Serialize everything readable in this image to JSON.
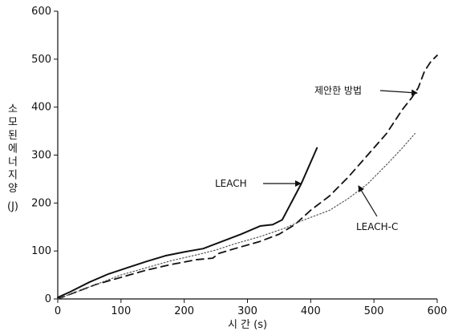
{
  "chart_data": {
    "type": "line",
    "title": "",
    "xlabel": "시 간 (s)",
    "ylabel_lines": [
      "소",
      "모",
      "된",
      "에",
      "너",
      "지",
      "양",
      "(J)"
    ],
    "xlim": [
      0,
      600
    ],
    "ylim": [
      0,
      600
    ],
    "x_ticks": [
      0,
      100,
      200,
      300,
      400,
      500,
      600
    ],
    "y_ticks": [
      0,
      100,
      200,
      300,
      400,
      500,
      600
    ],
    "x_tick_labels": [
      "0",
      "100",
      "200",
      "300",
      "400",
      "500",
      "600"
    ],
    "y_tick_labels": [
      "0",
      "100",
      "200",
      "300",
      "400",
      "500",
      "600"
    ],
    "grid": false,
    "series": [
      {
        "name": "LEACH",
        "style": "solid",
        "color": "#111111",
        "x": [
          0,
          20,
          50,
          80,
          110,
          140,
          170,
          200,
          230,
          260,
          290,
          320,
          340,
          355,
          365,
          375,
          385,
          395,
          405,
          410
        ],
        "y": [
          3,
          15,
          35,
          52,
          65,
          78,
          90,
          98,
          105,
          120,
          135,
          152,
          155,
          165,
          190,
          215,
          240,
          270,
          300,
          315
        ]
      },
      {
        "name": "제안한 방법",
        "style": "dashed",
        "color": "#111111",
        "x": [
          0,
          30,
          60,
          100,
          140,
          180,
          220,
          245,
          255,
          280,
          320,
          350,
          375,
          400,
          430,
          460,
          490,
          520,
          545,
          560,
          570,
          580,
          590,
          600
        ],
        "y": [
          0,
          15,
          30,
          45,
          60,
          72,
          82,
          85,
          95,
          105,
          120,
          135,
          155,
          185,
          215,
          255,
          300,
          345,
          395,
          420,
          440,
          475,
          495,
          508
        ]
      },
      {
        "name": "LEACH-C",
        "style": "dotted",
        "color": "#555555",
        "x": [
          0,
          30,
          60,
          100,
          140,
          180,
          220,
          250,
          280,
          320,
          360,
          380,
          400,
          430,
          460,
          490,
          520,
          545,
          565
        ],
        "y": [
          0,
          15,
          30,
          50,
          65,
          80,
          92,
          102,
          115,
          130,
          148,
          160,
          170,
          185,
          210,
          240,
          280,
          315,
          345
        ]
      }
    ],
    "annotations": [
      {
        "text": "LEACH",
        "series": "LEACH",
        "point_x": 385,
        "point_y": 240
      },
      {
        "text": "제안한 방법",
        "series": "제안한 방법",
        "point_x": 555,
        "point_y": 432
      },
      {
        "text": "LEACH-C",
        "series": "LEACH-C",
        "point_x": 477,
        "point_y": 240
      }
    ]
  }
}
